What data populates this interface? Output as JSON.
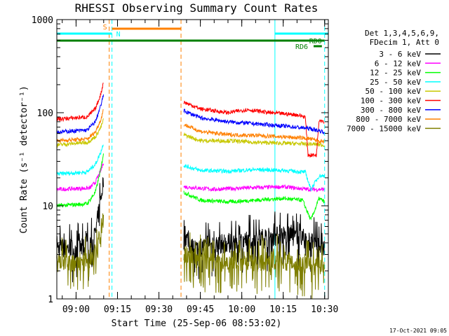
{
  "chart_data": {
    "type": "line",
    "title": "RHESSI Observing Summary Count Rates",
    "xlabel": "Start Time (25-Sep-06 08:53:02)",
    "ylabel": "Count Rate (s⁻¹ detector⁻¹)",
    "yscale": "log",
    "ylim": [
      1,
      1000
    ],
    "xlim": [
      "08:53:02",
      "10:31:20"
    ],
    "y_ticks": [
      "1",
      "10",
      "100",
      "1000"
    ],
    "x_ticks": [
      "09:00",
      "09:15",
      "09:30",
      "09:45",
      "10:00",
      "10:15",
      "10:30"
    ],
    "timestamp": "17-Oct-2021 09:05",
    "legend_header": [
      "Det 1,3,4,5,6,9,",
      "FDecim 1, Att 0"
    ],
    "legend_position": "right",
    "flags": [
      {
        "label": "S",
        "color": "#ff8000",
        "start": "09:13:00",
        "end": "09:38:00"
      },
      {
        "label": "N",
        "color": "#00ffff",
        "start": "08:53:02",
        "end": "09:13:00"
      },
      {
        "label": "",
        "color": "#00ffff",
        "start": "10:12:00",
        "end": "10:31:20"
      },
      {
        "label": "RD0",
        "color": "#007f00",
        "start": "08:53:02",
        "end": "10:30:00"
      },
      {
        "label": "RD6",
        "color": "#007f00",
        "start": "10:26:00",
        "end": "10:29:00"
      }
    ],
    "vlines": [
      {
        "time": "08:53:02",
        "color": "#00ffff",
        "style": "solid"
      },
      {
        "time": "09:12:00",
        "color": "#ff8000",
        "style": "dashed"
      },
      {
        "time": "09:13:00",
        "color": "#00ffff",
        "style": "dashed"
      },
      {
        "time": "09:38:00",
        "color": "#ff8000",
        "style": "dashed"
      },
      {
        "time": "10:12:00",
        "color": "#00ffff",
        "style": "solid"
      },
      {
        "time": "10:30:00",
        "color": "#00ffff",
        "style": "dashed"
      }
    ],
    "segments": [
      {
        "start": "08:53:02",
        "end": "09:10:30"
      },
      {
        "start": "09:39:30",
        "end": "10:30:30"
      }
    ],
    "series": [
      {
        "name": "3 - 6 keV",
        "color": "#000000",
        "seg1": [
          [
            "08:53",
            3.5
          ],
          [
            "09:05",
            3.5
          ],
          [
            "09:07",
            5
          ],
          [
            "09:09",
            12
          ],
          [
            "09:10",
            20
          ]
        ],
        "seg2": [
          [
            "09:39",
            5
          ],
          [
            "09:42",
            3.5
          ],
          [
            "09:50",
            3.8
          ],
          [
            "10:00",
            4.2
          ],
          [
            "10:15",
            4.8
          ],
          [
            "10:22",
            4.5
          ],
          [
            "10:30",
            3.5
          ]
        ]
      },
      {
        "name": "6 - 12 keV",
        "color": "#ff00ff",
        "seg1": [
          [
            "08:53",
            15
          ],
          [
            "09:05",
            15.5
          ],
          [
            "09:07",
            18
          ],
          [
            "09:09",
            24
          ],
          [
            "09:10",
            30
          ]
        ],
        "seg2": [
          [
            "09:39",
            16
          ],
          [
            "09:50",
            15
          ],
          [
            "10:00",
            15.5
          ],
          [
            "10:15",
            16
          ],
          [
            "10:24",
            15
          ],
          [
            "10:30",
            15
          ]
        ]
      },
      {
        "name": "12 - 25 keV",
        "color": "#00ff00",
        "seg1": [
          [
            "08:53",
            10
          ],
          [
            "09:04",
            10.5
          ],
          [
            "09:07",
            14
          ],
          [
            "09:09",
            25
          ],
          [
            "09:10",
            38
          ]
        ],
        "seg2": [
          [
            "09:39",
            14
          ],
          [
            "09:45",
            11.5
          ],
          [
            "09:55",
            11
          ],
          [
            "10:05",
            11.5
          ],
          [
            "10:15",
            12
          ],
          [
            "10:22",
            11.5
          ],
          [
            "10:25",
            7
          ],
          [
            "10:28",
            12
          ],
          [
            "10:30",
            11
          ]
        ]
      },
      {
        "name": "25 - 50 keV",
        "color": "#00ffff",
        "seg1": [
          [
            "08:53",
            22
          ],
          [
            "09:04",
            23
          ],
          [
            "09:07",
            28
          ],
          [
            "09:09",
            38
          ],
          [
            "09:10",
            48
          ]
        ],
        "seg2": [
          [
            "09:39",
            27
          ],
          [
            "09:45",
            24
          ],
          [
            "09:55",
            23.5
          ],
          [
            "10:05",
            24.5
          ],
          [
            "10:15",
            24
          ],
          [
            "10:23",
            23
          ],
          [
            "10:25",
            15
          ],
          [
            "10:28",
            21
          ],
          [
            "10:30",
            21
          ]
        ]
      },
      {
        "name": "50 - 100 keV",
        "color": "#c8c800",
        "seg1": [
          [
            "08:53",
            45
          ],
          [
            "09:04",
            48
          ],
          [
            "09:07",
            55
          ],
          [
            "09:09",
            70
          ],
          [
            "09:10",
            85
          ]
        ],
        "seg2": [
          [
            "09:39",
            58
          ],
          [
            "09:45",
            50
          ],
          [
            "09:55",
            50
          ],
          [
            "10:05",
            48
          ],
          [
            "10:15",
            47
          ],
          [
            "10:25",
            46
          ],
          [
            "10:30",
            45
          ]
        ]
      },
      {
        "name": "100 - 300 keV",
        "color": "#ff0000",
        "seg1": [
          [
            "08:53",
            85
          ],
          [
            "09:04",
            90
          ],
          [
            "09:07",
            110
          ],
          [
            "09:09",
            160
          ],
          [
            "09:10",
            220
          ]
        ],
        "seg2": [
          [
            "09:39",
            130
          ],
          [
            "09:45",
            110
          ],
          [
            "09:55",
            100
          ],
          [
            "10:02",
            108
          ],
          [
            "10:10",
            100
          ],
          [
            "10:20",
            95
          ],
          [
            "10:23",
            90
          ],
          [
            "10:24",
            35
          ],
          [
            "10:27",
            35
          ],
          [
            "10:28",
            85
          ],
          [
            "10:30",
            80
          ]
        ]
      },
      {
        "name": "300 - 800 keV",
        "color": "#0000ff",
        "seg1": [
          [
            "08:53",
            62
          ],
          [
            "09:04",
            65
          ],
          [
            "09:07",
            80
          ],
          [
            "09:09",
            120
          ],
          [
            "09:10",
            160
          ]
        ],
        "seg2": [
          [
            "09:39",
            105
          ],
          [
            "09:45",
            88
          ],
          [
            "09:55",
            80
          ],
          [
            "10:05",
            76
          ],
          [
            "10:15",
            72
          ],
          [
            "10:24",
            68
          ],
          [
            "10:30",
            62
          ]
        ]
      },
      {
        "name": "800 - 7000 keV",
        "color": "#ff8000",
        "seg1": [
          [
            "08:53",
            50
          ],
          [
            "09:04",
            52
          ],
          [
            "09:07",
            62
          ],
          [
            "09:09",
            85
          ],
          [
            "09:10",
            110
          ]
        ],
        "seg2": [
          [
            "09:39",
            75
          ],
          [
            "09:45",
            63
          ],
          [
            "09:55",
            58
          ],
          [
            "10:05",
            57
          ],
          [
            "10:15",
            55
          ],
          [
            "10:24",
            53
          ],
          [
            "10:30",
            48
          ]
        ]
      },
      {
        "name": "7000 - 15000 keV",
        "color": "#7f7f00",
        "seg1": [
          [
            "08:53",
            2.4
          ],
          [
            "09:05",
            2.5
          ],
          [
            "09:08",
            3.5
          ],
          [
            "09:10",
            8
          ]
        ],
        "seg2": [
          [
            "09:39",
            3
          ],
          [
            "09:50",
            2.4
          ],
          [
            "10:00",
            2.5
          ],
          [
            "10:15",
            2.6
          ],
          [
            "10:30",
            2.2
          ]
        ]
      }
    ]
  }
}
